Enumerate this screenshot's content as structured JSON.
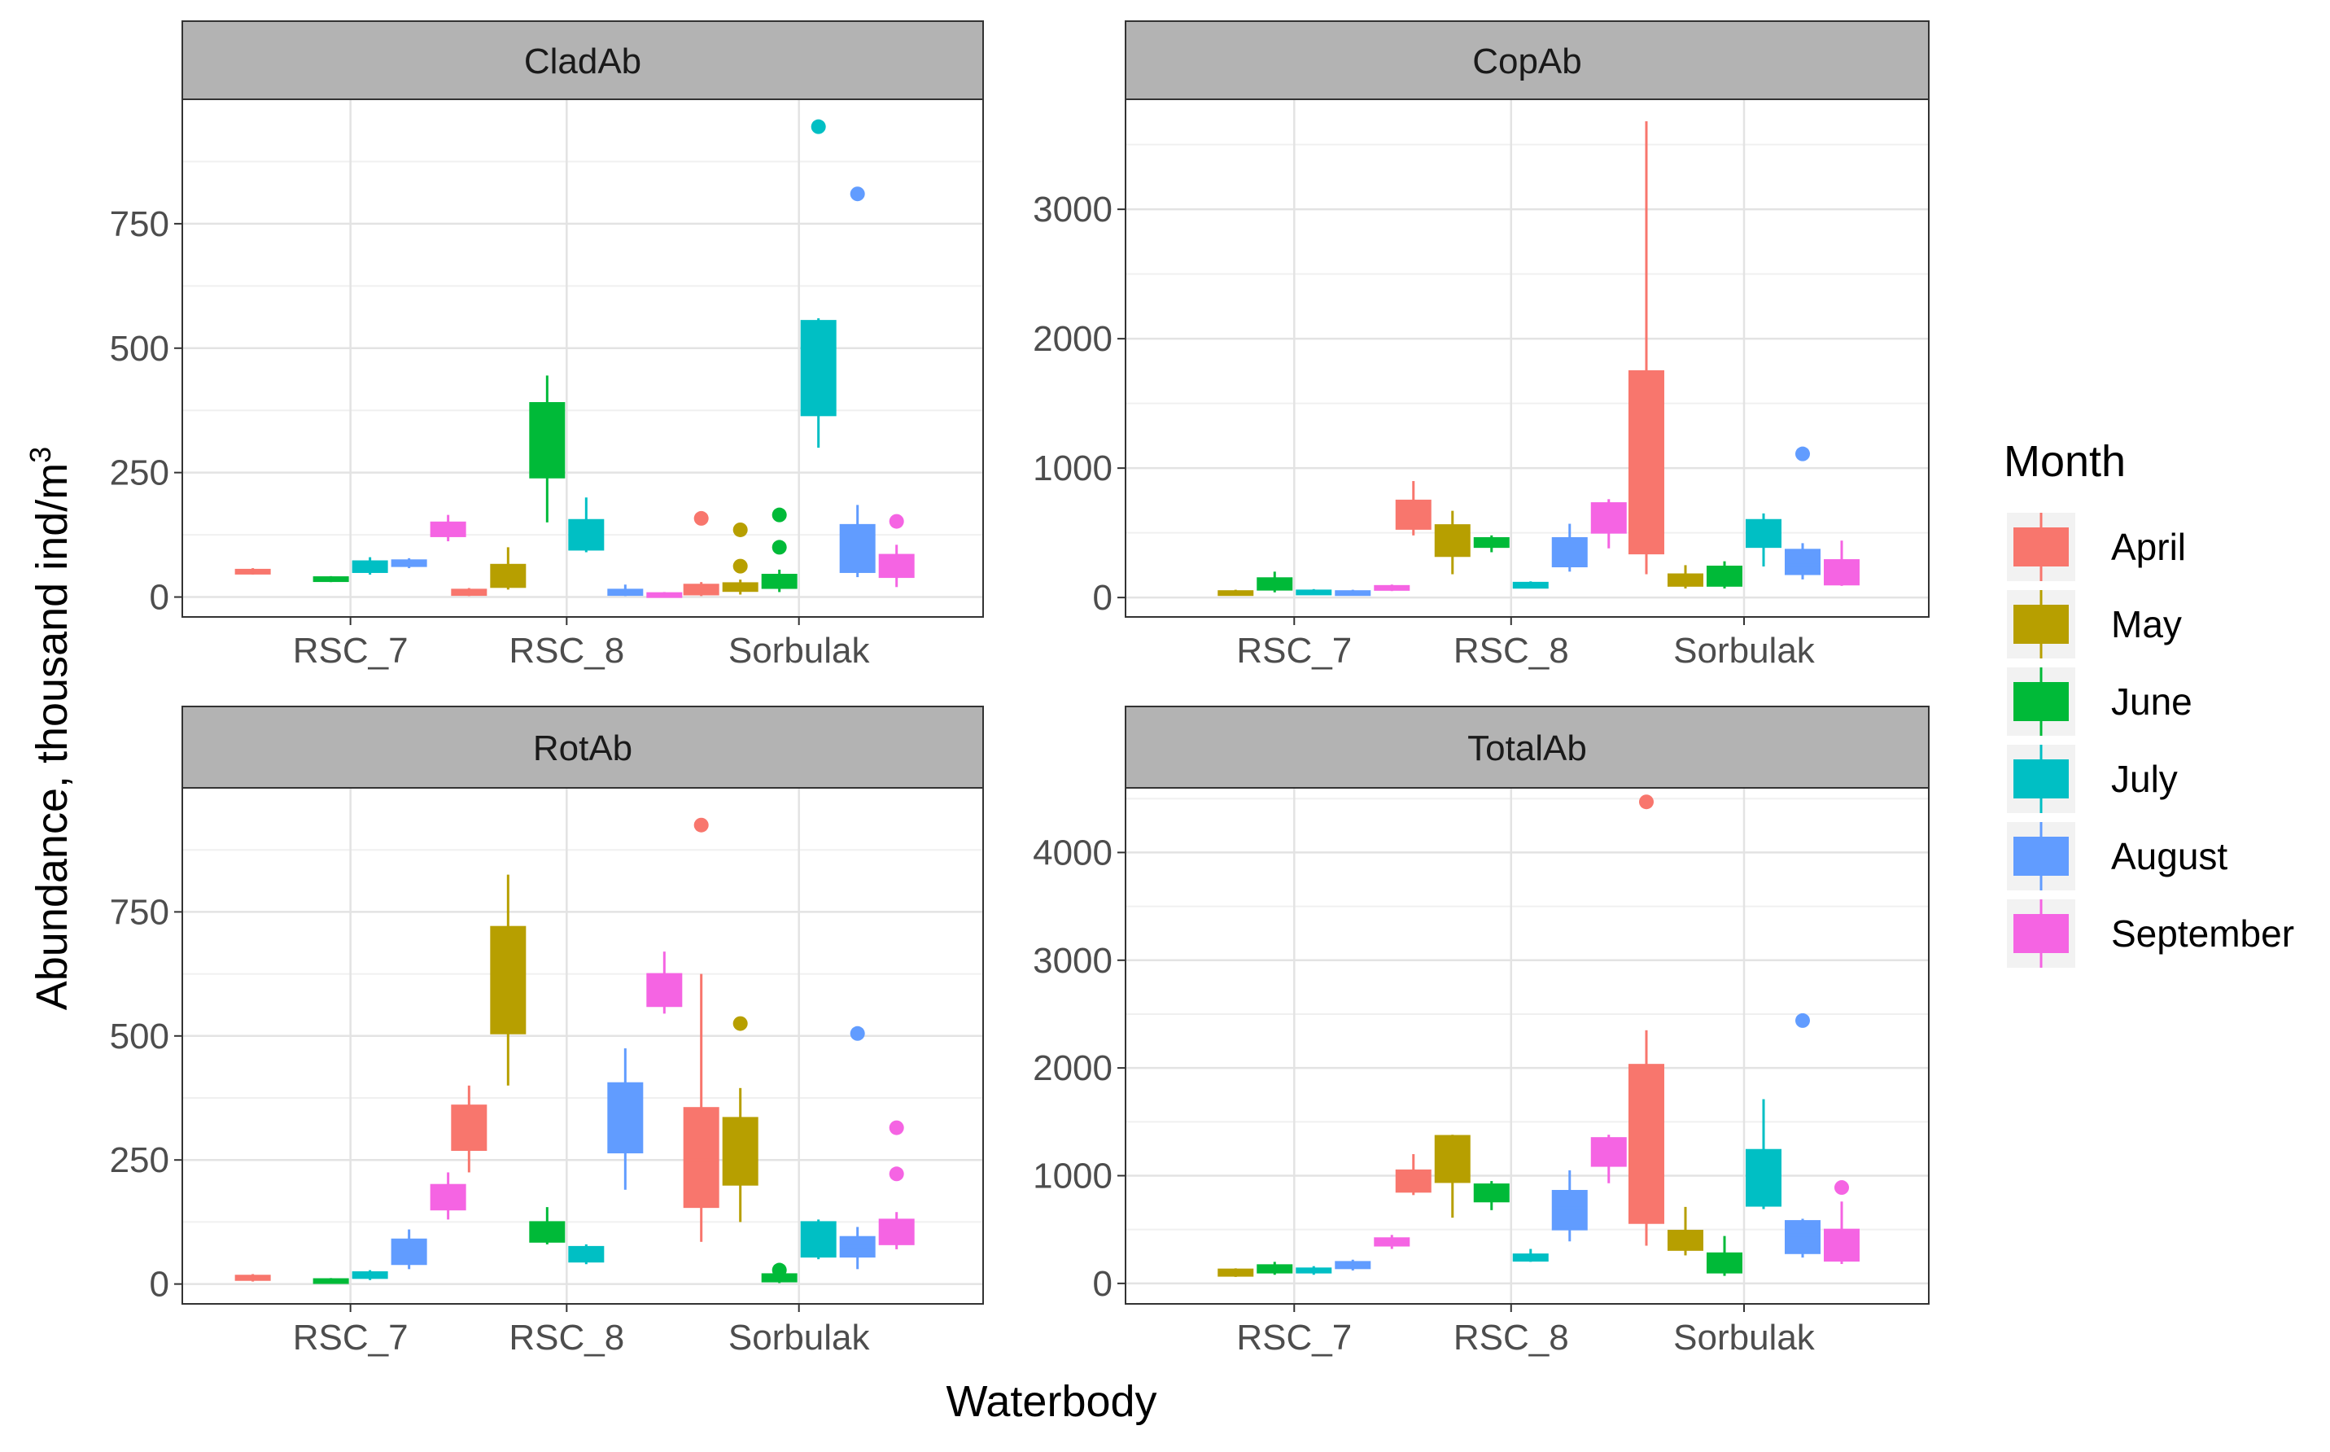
{
  "chart_data": {
    "type": "boxplot",
    "xlabel": "Waterbody",
    "ylabel_prefix": "Abundance, thousand ind/m",
    "ylabel_superscript": "3",
    "categories": [
      "RSC_7",
      "RSC_8",
      "Sorbulak"
    ],
    "legend": {
      "title": "Month",
      "position": "right",
      "entries": [
        {
          "name": "April",
          "color": "#F8766D"
        },
        {
          "name": "May",
          "color": "#B79F00"
        },
        {
          "name": "June",
          "color": "#00BA38"
        },
        {
          "name": "July",
          "color": "#00BFC4"
        },
        {
          "name": "August",
          "color": "#619CFF"
        },
        {
          "name": "September",
          "color": "#F564E3"
        }
      ]
    },
    "panels": [
      {
        "title": "CladAb",
        "ylim": [
          -40,
          1000
        ],
        "yticks": [
          0,
          250,
          500,
          750
        ],
        "ytick_labels": [
          "0",
          "250",
          "500",
          "750"
        ],
        "boxes": [
          {
            "cat": "RSC_7",
            "m": 0,
            "min": 45,
            "q1": 48,
            "med": 52,
            "q3": 55,
            "max": 58
          },
          {
            "cat": "RSC_7",
            "m": 2,
            "min": 30,
            "q1": 33,
            "med": 37,
            "q3": 40,
            "max": 42
          },
          {
            "cat": "RSC_7",
            "m": 3,
            "min": 45,
            "q1": 50,
            "med": 62,
            "q3": 72,
            "max": 80
          },
          {
            "cat": "RSC_7",
            "m": 4,
            "min": 58,
            "q1": 62,
            "med": 68,
            "q3": 74,
            "max": 78
          },
          {
            "cat": "RSC_7",
            "m": 5,
            "min": 112,
            "q1": 122,
            "med": 135,
            "q3": 150,
            "max": 165
          },
          {
            "cat": "RSC_8",
            "m": 0,
            "min": 2,
            "q1": 4,
            "med": 8,
            "q3": 15,
            "max": 18
          },
          {
            "cat": "RSC_8",
            "m": 1,
            "min": 15,
            "q1": 20,
            "med": 35,
            "q3": 65,
            "max": 100
          },
          {
            "cat": "RSC_8",
            "m": 2,
            "min": 150,
            "q1": 240,
            "med": 300,
            "q3": 390,
            "max": 445
          },
          {
            "cat": "RSC_8",
            "m": 3,
            "min": 90,
            "q1": 95,
            "med": 120,
            "q3": 155,
            "max": 200
          },
          {
            "cat": "RSC_8",
            "m": 4,
            "min": 2,
            "q1": 4,
            "med": 8,
            "q3": 15,
            "max": 25
          },
          {
            "cat": "RSC_8",
            "m": 5,
            "min": 0,
            "q1": 2,
            "med": 5,
            "q3": 8,
            "max": 10
          },
          {
            "cat": "Sorbulak",
            "m": 0,
            "min": 2,
            "q1": 5,
            "med": 12,
            "q3": 25,
            "max": 30,
            "outliers": [
              158
            ]
          },
          {
            "cat": "Sorbulak",
            "m": 1,
            "min": 5,
            "q1": 12,
            "med": 20,
            "q3": 28,
            "max": 35,
            "outliers": [
              62,
              135
            ]
          },
          {
            "cat": "Sorbulak",
            "m": 2,
            "min": 10,
            "q1": 18,
            "med": 28,
            "q3": 45,
            "max": 55,
            "outliers": [
              100,
              165
            ]
          },
          {
            "cat": "Sorbulak",
            "m": 3,
            "min": 300,
            "q1": 365,
            "med": 440,
            "q3": 555,
            "max": 560,
            "outliers": [
              945
            ]
          },
          {
            "cat": "Sorbulak",
            "m": 4,
            "min": 40,
            "q1": 50,
            "med": 90,
            "q3": 145,
            "max": 185,
            "outliers": [
              810
            ]
          },
          {
            "cat": "Sorbulak",
            "m": 5,
            "min": 20,
            "q1": 40,
            "med": 55,
            "q3": 85,
            "max": 105,
            "outliers": [
              152
            ]
          }
        ]
      },
      {
        "title": "CopAb",
        "ylim": [
          -150,
          3850
        ],
        "yticks": [
          0,
          1000,
          2000,
          3000
        ],
        "ytick_labels": [
          "0",
          "1000",
          "2000",
          "3000"
        ],
        "boxes": [
          {
            "cat": "RSC_7",
            "m": 1,
            "min": 20,
            "q1": 25,
            "med": 35,
            "q3": 50,
            "max": 60
          },
          {
            "cat": "RSC_7",
            "m": 2,
            "min": 40,
            "q1": 60,
            "med": 100,
            "q3": 150,
            "max": 200
          },
          {
            "cat": "RSC_7",
            "m": 3,
            "min": 20,
            "q1": 25,
            "med": 40,
            "q3": 55,
            "max": 65
          },
          {
            "cat": "RSC_7",
            "m": 4,
            "min": 20,
            "q1": 25,
            "med": 35,
            "q3": 50,
            "max": 60
          },
          {
            "cat": "RSC_7",
            "m": 5,
            "min": 50,
            "q1": 60,
            "med": 75,
            "q3": 90,
            "max": 100
          },
          {
            "cat": "RSC_8",
            "m": 0,
            "min": 480,
            "q1": 530,
            "med": 560,
            "q3": 750,
            "max": 900
          },
          {
            "cat": "RSC_8",
            "m": 1,
            "min": 180,
            "q1": 320,
            "med": 450,
            "q3": 560,
            "max": 670
          },
          {
            "cat": "RSC_8",
            "m": 2,
            "min": 350,
            "q1": 390,
            "med": 420,
            "q3": 460,
            "max": 480
          },
          {
            "cat": "RSC_8",
            "m": 3,
            "min": 70,
            "q1": 75,
            "med": 85,
            "q3": 115,
            "max": 125
          },
          {
            "cat": "RSC_8",
            "m": 4,
            "min": 200,
            "q1": 240,
            "med": 300,
            "q3": 460,
            "max": 570
          },
          {
            "cat": "RSC_8",
            "m": 5,
            "min": 380,
            "q1": 500,
            "med": 600,
            "q3": 730,
            "max": 760
          },
          {
            "cat": "Sorbulak",
            "m": 0,
            "min": 180,
            "q1": 340,
            "med": 900,
            "q3": 1750,
            "max": 3680
          },
          {
            "cat": "Sorbulak",
            "m": 1,
            "min": 70,
            "q1": 90,
            "med": 130,
            "q3": 180,
            "max": 250
          },
          {
            "cat": "Sorbulak",
            "m": 2,
            "min": 70,
            "q1": 90,
            "med": 150,
            "q3": 240,
            "max": 280
          },
          {
            "cat": "Sorbulak",
            "m": 3,
            "min": 240,
            "q1": 390,
            "med": 520,
            "q3": 600,
            "max": 650
          },
          {
            "cat": "Sorbulak",
            "m": 4,
            "min": 140,
            "q1": 180,
            "med": 250,
            "q3": 370,
            "max": 420,
            "outliers": [
              1110
            ]
          },
          {
            "cat": "Sorbulak",
            "m": 5,
            "min": 90,
            "q1": 100,
            "med": 200,
            "q3": 290,
            "max": 440
          }
        ]
      },
      {
        "title": "RotAb",
        "ylim": [
          -40,
          1000
        ],
        "yticks": [
          0,
          250,
          500,
          750
        ],
        "ytick_labels": [
          "0",
          "250",
          "500",
          "750"
        ],
        "boxes": [
          {
            "cat": "RSC_7",
            "m": 0,
            "min": 5,
            "q1": 8,
            "med": 12,
            "q3": 17,
            "max": 20
          },
          {
            "cat": "RSC_7",
            "m": 2,
            "min": 2,
            "q1": 3,
            "med": 6,
            "q3": 10,
            "max": 12
          },
          {
            "cat": "RSC_7",
            "m": 3,
            "min": 8,
            "q1": 12,
            "med": 18,
            "q3": 24,
            "max": 28
          },
          {
            "cat": "RSC_7",
            "m": 4,
            "min": 30,
            "q1": 40,
            "med": 60,
            "q3": 90,
            "max": 110
          },
          {
            "cat": "RSC_7",
            "m": 5,
            "min": 130,
            "q1": 150,
            "med": 175,
            "q3": 200,
            "max": 225
          },
          {
            "cat": "RSC_8",
            "m": 0,
            "min": 225,
            "q1": 270,
            "med": 320,
            "q3": 360,
            "max": 400
          },
          {
            "cat": "RSC_8",
            "m": 1,
            "min": 400,
            "q1": 505,
            "med": 600,
            "q3": 720,
            "max": 825
          },
          {
            "cat": "RSC_8",
            "m": 2,
            "min": 80,
            "q1": 85,
            "med": 100,
            "q3": 125,
            "max": 155
          },
          {
            "cat": "RSC_8",
            "m": 3,
            "min": 40,
            "q1": 45,
            "med": 55,
            "q3": 75,
            "max": 80
          },
          {
            "cat": "RSC_8",
            "m": 4,
            "min": 190,
            "q1": 265,
            "med": 320,
            "q3": 405,
            "max": 475
          },
          {
            "cat": "RSC_8",
            "m": 5,
            "min": 545,
            "q1": 560,
            "med": 580,
            "q3": 625,
            "max": 670
          },
          {
            "cat": "Sorbulak",
            "m": 0,
            "min": 85,
            "q1": 155,
            "med": 250,
            "q3": 355,
            "max": 625,
            "outliers": [
              925
            ]
          },
          {
            "cat": "Sorbulak",
            "m": 1,
            "min": 125,
            "q1": 200,
            "med": 260,
            "q3": 335,
            "max": 395,
            "outliers": [
              525
            ]
          },
          {
            "cat": "Sorbulak",
            "m": 2,
            "min": 2,
            "q1": 5,
            "med": 10,
            "q3": 20,
            "max": 25,
            "outliers": [
              28
            ]
          },
          {
            "cat": "Sorbulak",
            "m": 3,
            "min": 50,
            "q1": 55,
            "med": 75,
            "q3": 125,
            "max": 130
          },
          {
            "cat": "Sorbulak",
            "m": 4,
            "min": 30,
            "q1": 55,
            "med": 75,
            "q3": 95,
            "max": 115,
            "outliers": [
              505
            ]
          },
          {
            "cat": "Sorbulak",
            "m": 5,
            "min": 70,
            "q1": 80,
            "med": 95,
            "q3": 130,
            "max": 145,
            "outliers": [
              222,
              315
            ]
          }
        ]
      },
      {
        "title": "TotalAb",
        "ylim": [
          -190,
          4600
        ],
        "yticks": [
          0,
          1000,
          2000,
          3000,
          4000
        ],
        "ytick_labels": [
          "0",
          "1000",
          "2000",
          "3000",
          "4000"
        ],
        "boxes": [
          {
            "cat": "RSC_7",
            "m": 1,
            "min": 60,
            "q1": 70,
            "med": 100,
            "q3": 130,
            "max": 140
          },
          {
            "cat": "RSC_7",
            "m": 2,
            "min": 80,
            "q1": 100,
            "med": 130,
            "q3": 170,
            "max": 200
          },
          {
            "cat": "RSC_7",
            "m": 3,
            "min": 80,
            "q1": 100,
            "med": 120,
            "q3": 140,
            "max": 160
          },
          {
            "cat": "RSC_7",
            "m": 4,
            "min": 120,
            "q1": 140,
            "med": 170,
            "q3": 200,
            "max": 220
          },
          {
            "cat": "RSC_7",
            "m": 5,
            "min": 320,
            "q1": 350,
            "med": 380,
            "q3": 420,
            "max": 450
          },
          {
            "cat": "RSC_8",
            "m": 0,
            "min": 820,
            "q1": 850,
            "med": 950,
            "q3": 1050,
            "max": 1200
          },
          {
            "cat": "RSC_8",
            "m": 1,
            "min": 610,
            "q1": 940,
            "med": 1150,
            "q3": 1370,
            "max": 1380
          },
          {
            "cat": "RSC_8",
            "m": 2,
            "min": 680,
            "q1": 760,
            "med": 830,
            "q3": 920,
            "max": 950
          },
          {
            "cat": "RSC_8",
            "m": 3,
            "min": 200,
            "q1": 210,
            "med": 240,
            "q3": 270,
            "max": 320
          },
          {
            "cat": "RSC_8",
            "m": 4,
            "min": 390,
            "q1": 500,
            "med": 700,
            "q3": 860,
            "max": 1050
          },
          {
            "cat": "RSC_8",
            "m": 5,
            "min": 930,
            "q1": 1090,
            "med": 1250,
            "q3": 1350,
            "max": 1380
          },
          {
            "cat": "Sorbulak",
            "m": 0,
            "min": 350,
            "q1": 560,
            "med": 1200,
            "q3": 2030,
            "max": 2350,
            "outliers": [
              4470
            ]
          },
          {
            "cat": "Sorbulak",
            "m": 1,
            "min": 260,
            "q1": 310,
            "med": 400,
            "q3": 490,
            "max": 710
          },
          {
            "cat": "Sorbulak",
            "m": 2,
            "min": 70,
            "q1": 100,
            "med": 170,
            "q3": 280,
            "max": 440
          },
          {
            "cat": "Sorbulak",
            "m": 3,
            "min": 690,
            "q1": 720,
            "med": 950,
            "q3": 1240,
            "max": 1710
          },
          {
            "cat": "Sorbulak",
            "m": 4,
            "min": 240,
            "q1": 280,
            "med": 450,
            "q3": 580,
            "max": 600,
            "outliers": [
              2440
            ]
          },
          {
            "cat": "Sorbulak",
            "m": 5,
            "min": 180,
            "q1": 210,
            "med": 350,
            "q3": 500,
            "max": 760,
            "outliers": [
              890
            ]
          }
        ]
      }
    ]
  }
}
